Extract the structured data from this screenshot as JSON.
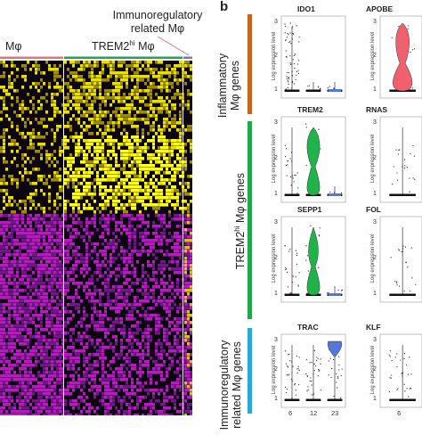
{
  "left_panel": {
    "immuno_label_line1": "Immunoregulatory",
    "immuno_label_line2": "related Mφ",
    "inflam_cluster": "Mφ",
    "trem2_prefix": "TREM2",
    "trem2_sup": "hi",
    "trem2_suffix": " Mφ",
    "colors": {
      "inflam": "#e5736f",
      "trem2": "#22a84a",
      "immuno": "#6a7fd1"
    }
  },
  "panel_b": {
    "letter": "b",
    "groups": [
      {
        "line1": "Inflammatory",
        "line2": "Mφ genes",
        "color": "#c8641e"
      },
      {
        "prefix": "TREM2",
        "sup": "hi",
        "suffix": " Mφ genes",
        "color": "#22a84a"
      },
      {
        "line1": "Immunoregulatory",
        "line2": "related Mφ genes",
        "color": "#29a8e0"
      }
    ],
    "ylabel": "Log expression level",
    "yticks": [
      "3",
      "2",
      "1"
    ],
    "xticks": [
      "6",
      "12",
      "23"
    ],
    "genes_left": [
      "IDO1",
      "TREM2",
      "SEPP1",
      "TRAC"
    ],
    "genes_right": [
      "APOBE",
      "RNAS",
      "FOL",
      "KLF"
    ],
    "cluster_colors": {
      "inflam": "#f0606e",
      "trem2": "#1fb34a",
      "immuno": "#5578d8"
    }
  }
}
